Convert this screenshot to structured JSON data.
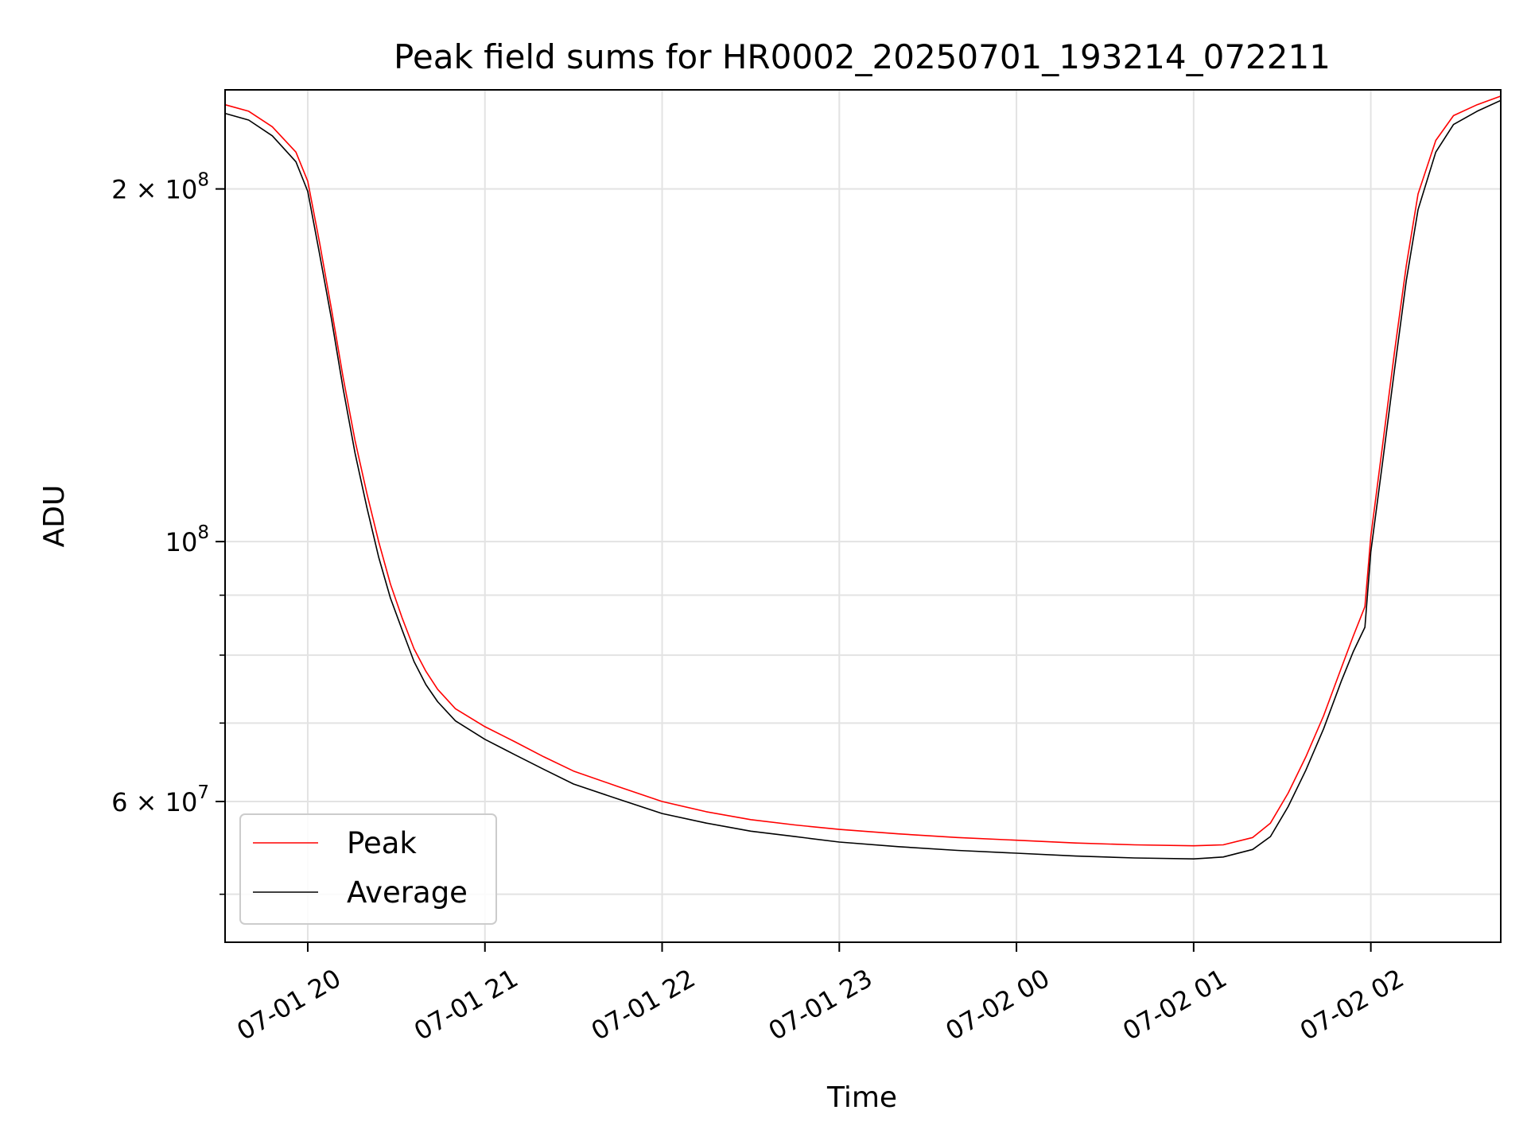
{
  "chart_data": {
    "type": "line",
    "title": "Peak field sums for HR0002_20250701_193214_072211",
    "xlabel": "Time",
    "ylabel": "ADU",
    "y_scale": "log",
    "xlim": [
      "2025-07-01 19:32",
      "2025-07-02 02:44"
    ],
    "ylim": [
      45500000,
      243000000
    ],
    "x_ticks": [
      {
        "time": "2025-07-01 20:00",
        "label": "07-01 20"
      },
      {
        "time": "2025-07-01 21:00",
        "label": "07-01 21"
      },
      {
        "time": "2025-07-01 22:00",
        "label": "07-01 22"
      },
      {
        "time": "2025-07-01 23:00",
        "label": "07-01 23"
      },
      {
        "time": "2025-07-02 00:00",
        "label": "07-02 00"
      },
      {
        "time": "2025-07-02 01:00",
        "label": "07-02 01"
      },
      {
        "time": "2025-07-02 02:00",
        "label": "07-02 02"
      }
    ],
    "y_ticks_major": [
      {
        "value": 200000000,
        "base": "2 × 10",
        "exp": "8"
      },
      {
        "value": 100000000,
        "base": "10",
        "exp": "8"
      },
      {
        "value": 60000000,
        "base": "6 × 10",
        "exp": "7"
      }
    ],
    "y_ticks_minor": [
      50000000,
      70000000,
      80000000,
      90000000
    ],
    "grid": true,
    "legend_position": "lower-left",
    "series": [
      {
        "name": "Peak",
        "color": "#ff0000",
        "points": [
          [
            "2025-07-01 19:32",
            236000000
          ],
          [
            "2025-07-01 19:40",
            233000000
          ],
          [
            "2025-07-01 19:48",
            226000000
          ],
          [
            "2025-07-01 19:56",
            215000000
          ],
          [
            "2025-07-01 20:00",
            203000000
          ],
          [
            "2025-07-01 20:04",
            180000000
          ],
          [
            "2025-07-01 20:08",
            158000000
          ],
          [
            "2025-07-01 20:12",
            138000000
          ],
          [
            "2025-07-01 20:16",
            122000000
          ],
          [
            "2025-07-01 20:20",
            110000000
          ],
          [
            "2025-07-01 20:24",
            100000000
          ],
          [
            "2025-07-01 20:28",
            92000000
          ],
          [
            "2025-07-01 20:32",
            86000000
          ],
          [
            "2025-07-01 20:36",
            81000000
          ],
          [
            "2025-07-01 20:40",
            77500000
          ],
          [
            "2025-07-01 20:44",
            74800000
          ],
          [
            "2025-07-01 20:50",
            72000000
          ],
          [
            "2025-07-01 21:00",
            69500000
          ],
          [
            "2025-07-01 21:10",
            67500000
          ],
          [
            "2025-07-01 21:20",
            65500000
          ],
          [
            "2025-07-01 21:30",
            63700000
          ],
          [
            "2025-07-01 21:45",
            61800000
          ],
          [
            "2025-07-01 22:00",
            60000000
          ],
          [
            "2025-07-01 22:15",
            58800000
          ],
          [
            "2025-07-01 22:30",
            57900000
          ],
          [
            "2025-07-01 22:45",
            57300000
          ],
          [
            "2025-07-01 23:00",
            56800000
          ],
          [
            "2025-07-01 23:20",
            56300000
          ],
          [
            "2025-07-01 23:40",
            55900000
          ],
          [
            "2025-07-02 00:00",
            55600000
          ],
          [
            "2025-07-02 00:20",
            55300000
          ],
          [
            "2025-07-02 00:40",
            55100000
          ],
          [
            "2025-07-02 01:00",
            55000000
          ],
          [
            "2025-07-02 01:10",
            55100000
          ],
          [
            "2025-07-02 01:20",
            55900000
          ],
          [
            "2025-07-02 01:26",
            57500000
          ],
          [
            "2025-07-02 01:32",
            61000000
          ],
          [
            "2025-07-02 01:38",
            65500000
          ],
          [
            "2025-07-02 01:44",
            71000000
          ],
          [
            "2025-07-02 01:50",
            78000000
          ],
          [
            "2025-07-02 01:54",
            83000000
          ],
          [
            "2025-07-02 01:58",
            88000000
          ],
          [
            "2025-07-02 02:00",
            101000000
          ],
          [
            "2025-07-02 02:04",
            121000000
          ],
          [
            "2025-07-02 02:08",
            145000000
          ],
          [
            "2025-07-02 02:12",
            172000000
          ],
          [
            "2025-07-02 02:16",
            198000000
          ],
          [
            "2025-07-02 02:22",
            220000000
          ],
          [
            "2025-07-02 02:28",
            231000000
          ],
          [
            "2025-07-02 02:36",
            236000000
          ],
          [
            "2025-07-02 02:44",
            240000000
          ]
        ]
      },
      {
        "name": "Average",
        "color": "#000000",
        "points": [
          [
            "2025-07-01 19:32",
            232000000
          ],
          [
            "2025-07-01 19:40",
            229000000
          ],
          [
            "2025-07-01 19:48",
            222000000
          ],
          [
            "2025-07-01 19:56",
            211000000
          ],
          [
            "2025-07-01 20:00",
            199000000
          ],
          [
            "2025-07-01 20:04",
            176000000
          ],
          [
            "2025-07-01 20:08",
            155000000
          ],
          [
            "2025-07-01 20:12",
            135000000
          ],
          [
            "2025-07-01 20:16",
            119000000
          ],
          [
            "2025-07-01 20:20",
            107000000
          ],
          [
            "2025-07-01 20:24",
            97000000
          ],
          [
            "2025-07-01 20:28",
            89500000
          ],
          [
            "2025-07-01 20:32",
            84000000
          ],
          [
            "2025-07-01 20:36",
            79000000
          ],
          [
            "2025-07-01 20:40",
            75500000
          ],
          [
            "2025-07-01 20:44",
            73000000
          ],
          [
            "2025-07-01 20:50",
            70300000
          ],
          [
            "2025-07-01 21:00",
            67800000
          ],
          [
            "2025-07-01 21:10",
            65800000
          ],
          [
            "2025-07-01 21:20",
            63900000
          ],
          [
            "2025-07-01 21:30",
            62100000
          ],
          [
            "2025-07-01 21:45",
            60300000
          ],
          [
            "2025-07-01 22:00",
            58600000
          ],
          [
            "2025-07-01 22:15",
            57500000
          ],
          [
            "2025-07-01 22:30",
            56600000
          ],
          [
            "2025-07-01 22:45",
            56000000
          ],
          [
            "2025-07-01 23:00",
            55400000
          ],
          [
            "2025-07-01 23:20",
            54900000
          ],
          [
            "2025-07-01 23:40",
            54500000
          ],
          [
            "2025-07-02 00:00",
            54200000
          ],
          [
            "2025-07-02 00:20",
            53900000
          ],
          [
            "2025-07-02 00:40",
            53700000
          ],
          [
            "2025-07-02 01:00",
            53600000
          ],
          [
            "2025-07-02 01:10",
            53800000
          ],
          [
            "2025-07-02 01:20",
            54600000
          ],
          [
            "2025-07-02 01:26",
            56000000
          ],
          [
            "2025-07-02 01:32",
            59400000
          ],
          [
            "2025-07-02 01:38",
            63800000
          ],
          [
            "2025-07-02 01:44",
            69200000
          ],
          [
            "2025-07-02 01:50",
            76000000
          ],
          [
            "2025-07-02 01:54",
            80500000
          ],
          [
            "2025-07-02 01:58",
            84500000
          ],
          [
            "2025-07-02 02:00",
            98000000
          ],
          [
            "2025-07-02 02:04",
            117000000
          ],
          [
            "2025-07-02 02:08",
            140000000
          ],
          [
            "2025-07-02 02:12",
            167000000
          ],
          [
            "2025-07-02 02:16",
            192000000
          ],
          [
            "2025-07-02 02:22",
            215000000
          ],
          [
            "2025-07-02 02:28",
            227000000
          ],
          [
            "2025-07-02 02:36",
            233000000
          ],
          [
            "2025-07-02 02:44",
            238000000
          ]
        ]
      }
    ]
  }
}
